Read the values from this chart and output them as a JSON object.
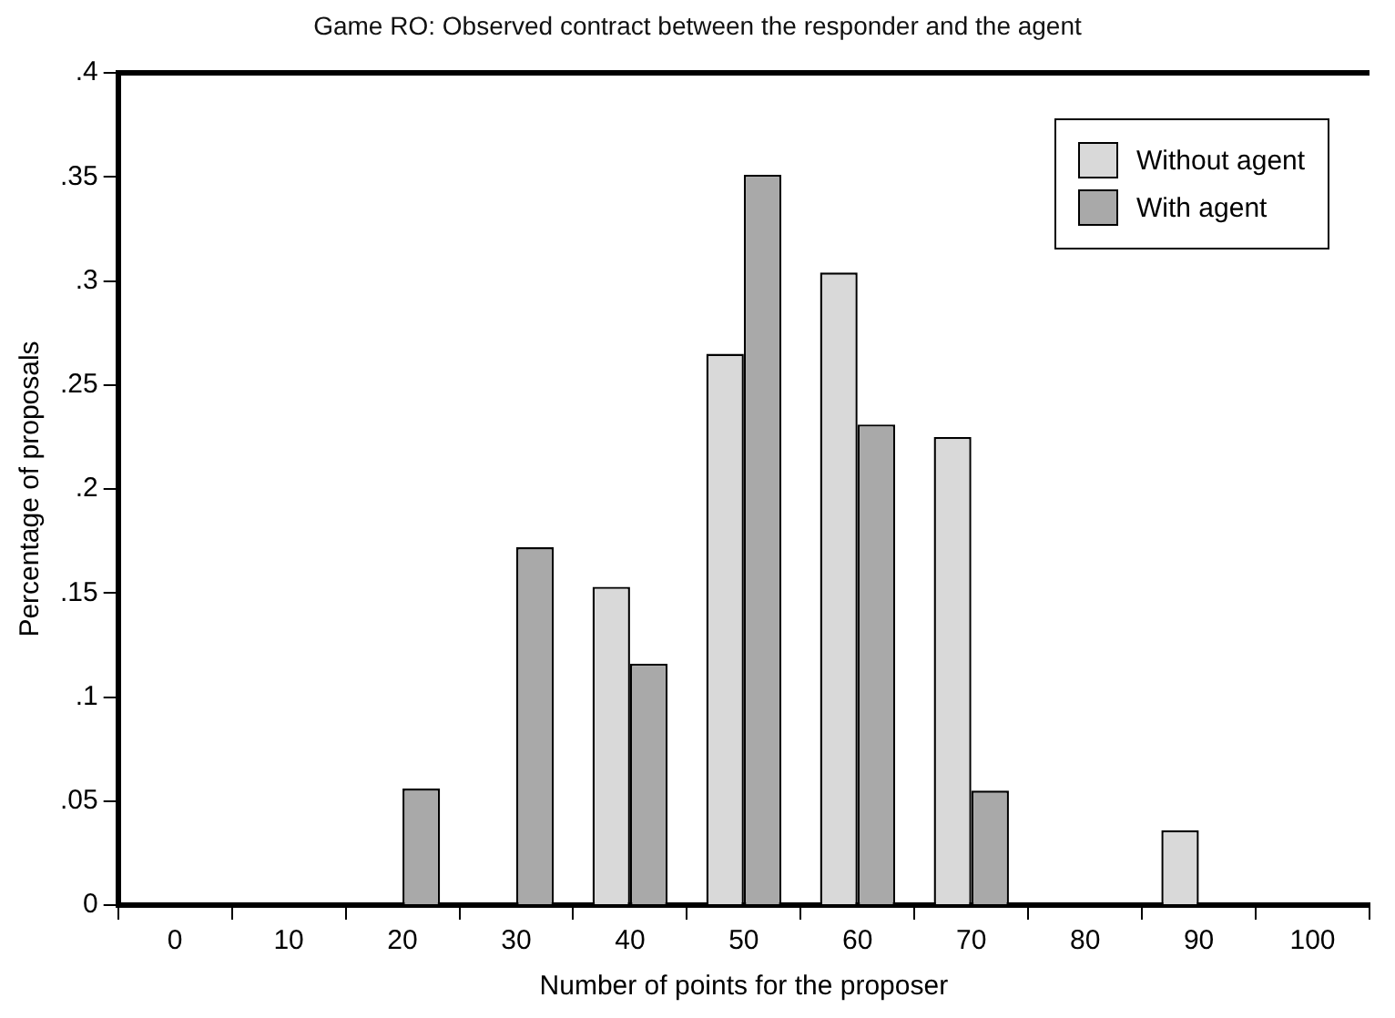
{
  "chart_data": {
    "type": "bar",
    "title": "Game RO:  Observed contract between the responder and the agent",
    "xlabel": "Number of points for the proposer",
    "ylabel": "Percentage of proposals",
    "categories": [
      "0",
      "10",
      "20",
      "30",
      "40",
      "50",
      "60",
      "70",
      "80",
      "90",
      "100"
    ],
    "series": [
      {
        "name": "Without agent",
        "color": "#d9d9d9",
        "values": [
          0,
          0,
          0,
          0,
          0.153,
          0.265,
          0.304,
          0.225,
          0,
          0.036,
          0
        ]
      },
      {
        "name": "With agent",
        "color": "#a9a9a9",
        "values": [
          0,
          0,
          0.056,
          0.172,
          0.116,
          0.351,
          0.231,
          0.055,
          0,
          0,
          0
        ]
      }
    ],
    "ylim": [
      0,
      0.4
    ],
    "yticks": [
      0,
      {
        "value": 0.05,
        "label": ".05"
      },
      {
        "value": 0.1,
        "label": ".1"
      },
      {
        "value": 0.15,
        "label": ".15"
      },
      {
        "value": 0.2,
        "label": ".2"
      },
      {
        "value": 0.25,
        "label": ".25"
      },
      {
        "value": 0.3,
        "label": ".3"
      },
      {
        "value": 0.35,
        "label": ".35"
      },
      {
        "value": 0.4,
        "label": ".4"
      }
    ],
    "grid": false,
    "legend": "top right"
  }
}
